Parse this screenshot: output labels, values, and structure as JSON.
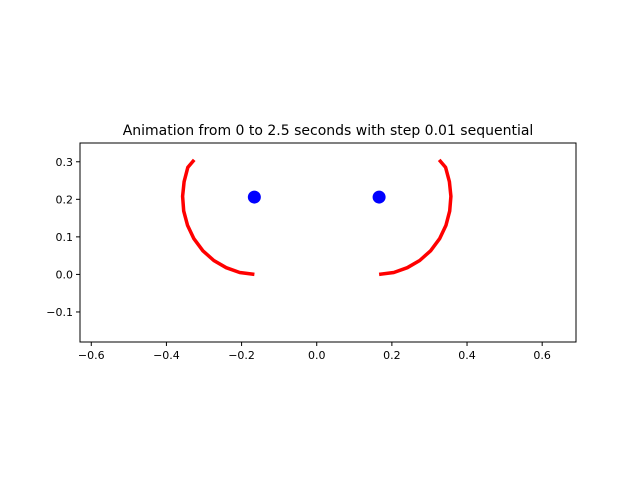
{
  "chart_data": {
    "type": "line",
    "title": "Animation from 0 to 2.5 seconds with step 0.01 sequential",
    "xlabel": "",
    "ylabel": "",
    "xlim": [
      -0.63,
      0.69
    ],
    "ylim": [
      -0.18,
      0.35
    ],
    "xticks": [
      -0.6,
      -0.4,
      -0.2,
      0.0,
      0.2,
      0.4,
      0.6
    ],
    "xtick_labels": [
      "−0.6",
      "−0.4",
      "−0.2",
      "0.0",
      "0.2",
      "0.4",
      "0.6"
    ],
    "yticks": [
      -0.1,
      0.0,
      0.1,
      0.2,
      0.3
    ],
    "ytick_labels": [
      "−0.1",
      "0.0",
      "0.1",
      "0.2",
      "0.3"
    ],
    "grid": false,
    "series": [
      {
        "kind": "line",
        "color": "#ff0000",
        "x": [
          -0.166,
          -0.205,
          -0.241,
          -0.274,
          -0.303,
          -0.327,
          -0.344,
          -0.354,
          -0.357,
          -0.353,
          -0.343,
          -0.326
        ],
        "y": [
          0.0,
          0.005,
          0.018,
          0.037,
          0.063,
          0.095,
          0.131,
          0.169,
          0.208,
          0.247,
          0.285,
          0.305
        ]
      },
      {
        "kind": "line",
        "color": "#ff0000",
        "x": [
          0.166,
          0.205,
          0.241,
          0.274,
          0.303,
          0.327,
          0.344,
          0.354,
          0.357,
          0.353,
          0.343,
          0.326
        ],
        "y": [
          0.0,
          0.005,
          0.018,
          0.037,
          0.063,
          0.095,
          0.131,
          0.169,
          0.208,
          0.247,
          0.285,
          0.305
        ]
      },
      {
        "kind": "scatter",
        "color": "#0000ff",
        "x": [
          -0.166,
          0.166
        ],
        "y": [
          0.206,
          0.206
        ]
      }
    ]
  }
}
